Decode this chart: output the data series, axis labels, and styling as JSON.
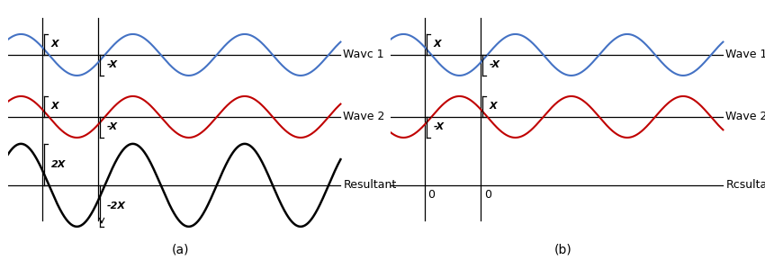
{
  "fig_width": 8.5,
  "fig_height": 2.99,
  "dpi": 100,
  "background_color": "#ffffff",
  "wave_color_1": "#4472C4",
  "wave_color_2": "#C00000",
  "wave_color_black": "#000000",
  "wave1_label_a": "Wavc 1",
  "wave2_label_a": "Wave 2",
  "resultant_label_a": "Resultant",
  "wave1_label_b": "Wave 1",
  "wave2_label_b": "Wave 2",
  "resultant_label_b": "Rcsultant",
  "annot_X": "X",
  "annot_nX": "-X",
  "annot_2X": "2X",
  "annot_n2X": "-2X",
  "annot_0": "0",
  "panel_a_label": "(a)",
  "panel_b_label": "(b)",
  "label_fontsize": 9,
  "annot_fontsize": 8,
  "caption_fontsize": 10,
  "wave_lw": 1.5,
  "axis_lw": 0.9,
  "bracket_lw": 0.9
}
